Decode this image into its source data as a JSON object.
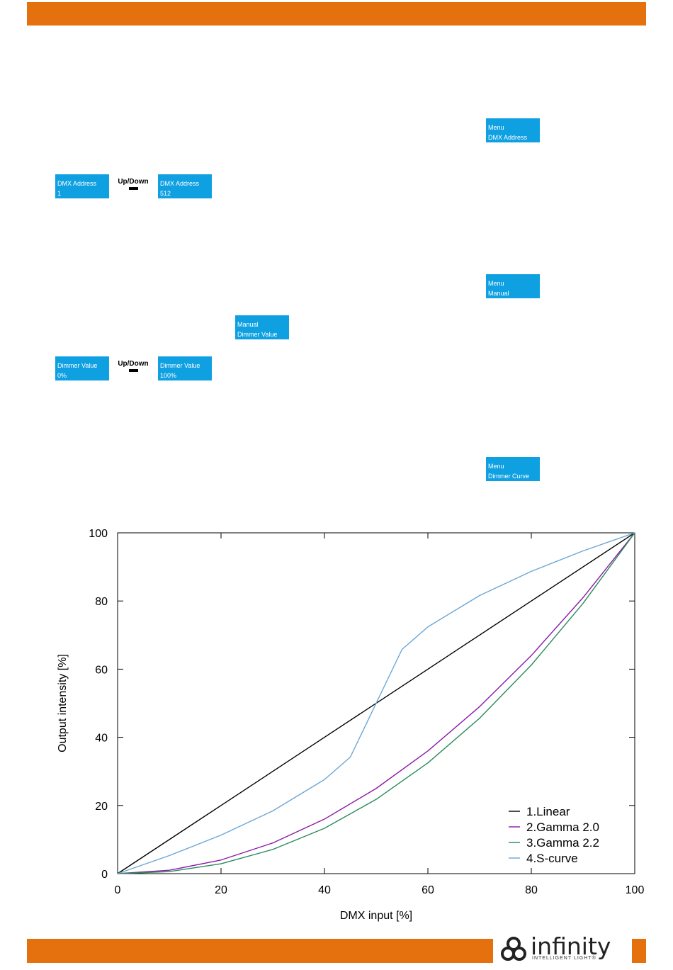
{
  "colors": {
    "accent": "#e5700e",
    "lcd": "#0fa0e2"
  },
  "lcds": {
    "menu_dmx": [
      "Menu",
      "DMX Address"
    ],
    "dmx_min": [
      "DMX Address",
      "1"
    ],
    "dmx_max": [
      "DMX Address",
      "512"
    ],
    "menu_manual": [
      "Menu",
      "Manual"
    ],
    "manual_dimmer": [
      "Manual",
      "Dimmer Value"
    ],
    "dimmer_min": [
      "Dimmer Value",
      "0%"
    ],
    "dimmer_max": [
      "Dimmer Value",
      "100%"
    ],
    "menu_curve": [
      "Menu",
      "Dimmer Curve"
    ]
  },
  "updown_label": "Up/Down",
  "logo": {
    "word": "infinity",
    "tagline": "INTELLIGENT LIGHT",
    "mark": "®"
  },
  "chart_data": {
    "type": "line",
    "xlabel": "DMX input [%]",
    "ylabel": "Output intensity [%]",
    "xlim": [
      0,
      100
    ],
    "ylim": [
      0,
      100
    ],
    "xticks": [
      "0",
      "20",
      "40",
      "60",
      "80",
      "100"
    ],
    "yticks": [
      "0",
      "20",
      "40",
      "60",
      "80",
      "100"
    ],
    "legend_position": "bottom-right",
    "grid": false,
    "series": [
      {
        "name": "1.Linear",
        "color": "#000000",
        "x": [
          0,
          20,
          40,
          60,
          80,
          100
        ],
        "y": [
          0,
          20,
          40,
          60,
          80,
          100
        ]
      },
      {
        "name": "2.Gamma 2.0",
        "color": "#8b1aa8",
        "x": [
          0,
          10,
          20,
          30,
          40,
          50,
          60,
          70,
          80,
          90,
          100
        ],
        "y": [
          0,
          1,
          4,
          9,
          16,
          25,
          36,
          49,
          64,
          81,
          100
        ]
      },
      {
        "name": "3.Gamma 2.2",
        "color": "#2a8a5a",
        "x": [
          0,
          10,
          20,
          30,
          40,
          50,
          60,
          70,
          80,
          90,
          100
        ],
        "y": [
          0,
          0.6,
          2.9,
          7.1,
          13.3,
          21.8,
          32.5,
          45.6,
          61.2,
          79.3,
          100
        ]
      },
      {
        "name": "4.S-curve",
        "color": "#6aa6d6",
        "x": [
          0,
          10,
          20,
          30,
          40,
          45,
          50,
          55,
          60,
          70,
          80,
          90,
          100
        ],
        "y": [
          0,
          5.3,
          11.3,
          18.4,
          27.6,
          34.2,
          50,
          65.8,
          72.4,
          81.6,
          88.7,
          94.7,
          100
        ]
      }
    ]
  }
}
